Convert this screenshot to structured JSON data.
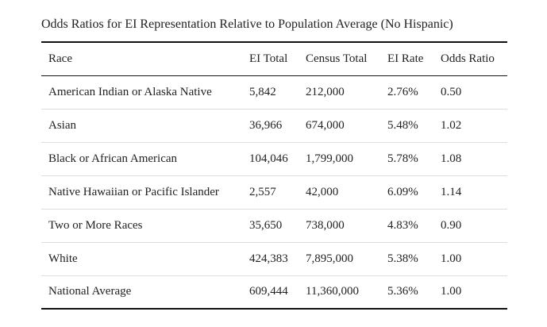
{
  "caption": "Odds Ratios for EI Representation Relative to Population Average (No Hispanic)",
  "columns": [
    "Race",
    "EI Total",
    "Census Total",
    "EI Rate",
    "Odds Ratio"
  ],
  "rows": [
    [
      "American Indian or Alaska Native",
      "5,842",
      "212,000",
      "2.76%",
      "0.50"
    ],
    [
      "Asian",
      "36,966",
      "674,000",
      "5.48%",
      "1.02"
    ],
    [
      "Black or African American",
      "104,046",
      "1,799,000",
      "5.78%",
      "1.08"
    ],
    [
      "Native Hawaiian or Pacific Islander",
      "2,557",
      "42,000",
      "6.09%",
      "1.14"
    ],
    [
      "Two or More Races",
      "35,650",
      "738,000",
      "4.83%",
      "0.90"
    ],
    [
      "White",
      "424,383",
      "7,895,000",
      "5.38%",
      "1.00"
    ],
    [
      "National Average",
      "609,444",
      "11,360,000",
      "5.36%",
      "1.00"
    ]
  ]
}
